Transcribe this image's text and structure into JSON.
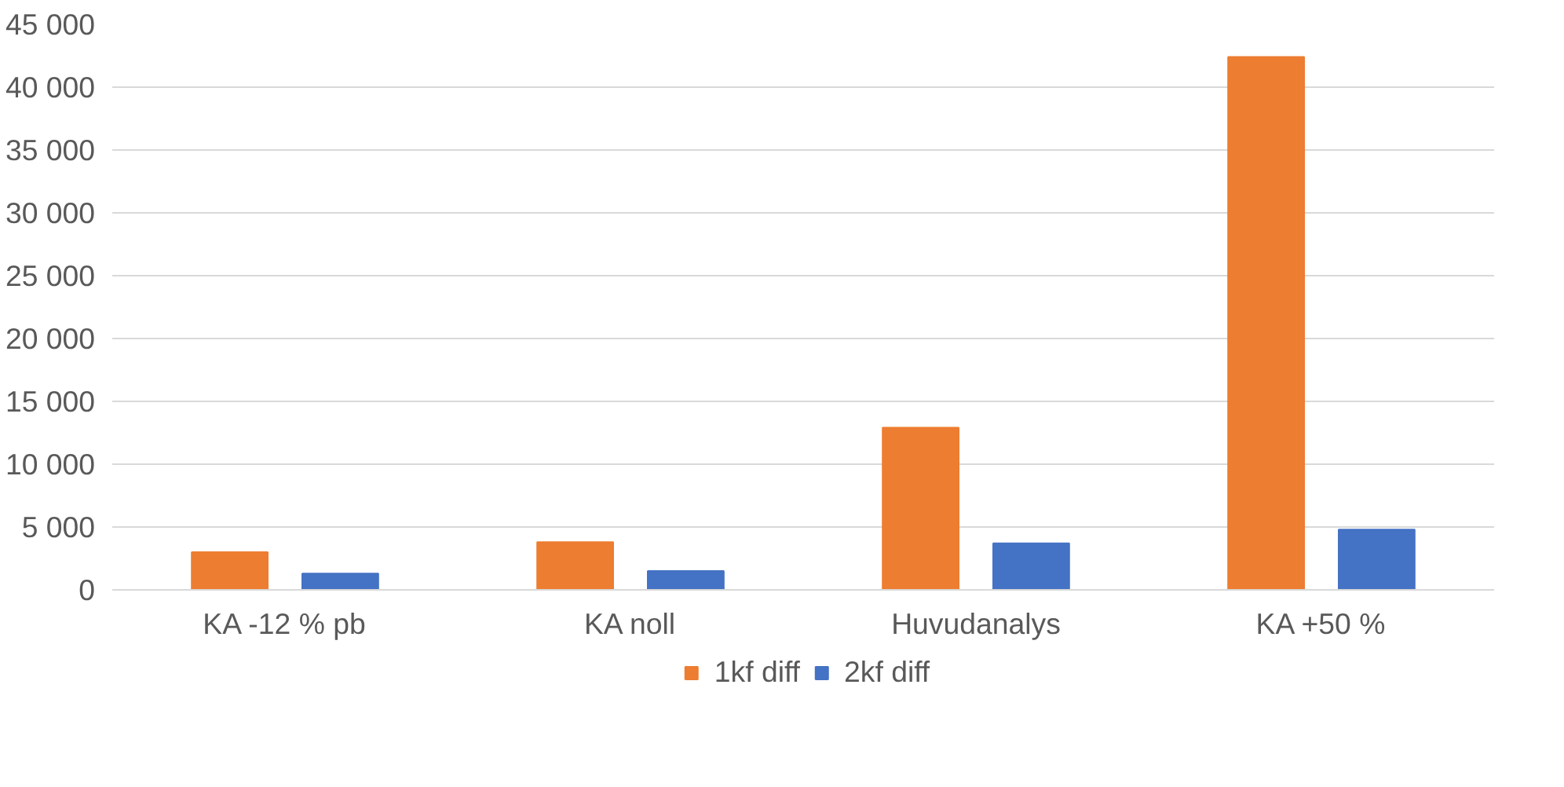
{
  "chart_data": {
    "type": "bar",
    "categories": [
      "KA -12 % pb",
      "KA noll",
      "Huvudanalys",
      "KA +50 %"
    ],
    "series": [
      {
        "name": "1kf diff",
        "color": "#ed7d31",
        "values": [
          3000,
          3800,
          12900,
          42400
        ]
      },
      {
        "name": "2kf diff",
        "color": "#4472c4",
        "values": [
          1300,
          1500,
          3700,
          4800
        ]
      }
    ],
    "ylim": [
      0,
      45000
    ],
    "yticks": [
      {
        "value": 0,
        "label": "0"
      },
      {
        "value": 5000,
        "label": "5 000"
      },
      {
        "value": 10000,
        "label": "10 000"
      },
      {
        "value": 15000,
        "label": "15 000"
      },
      {
        "value": 20000,
        "label": "20 000"
      },
      {
        "value": 25000,
        "label": "25 000"
      },
      {
        "value": 30000,
        "label": "30 000"
      },
      {
        "value": 35000,
        "label": "35 000"
      },
      {
        "value": 40000,
        "label": "40 000"
      },
      {
        "value": 45000,
        "label": "45 000"
      }
    ],
    "grid": "y",
    "legend": "bottom"
  }
}
